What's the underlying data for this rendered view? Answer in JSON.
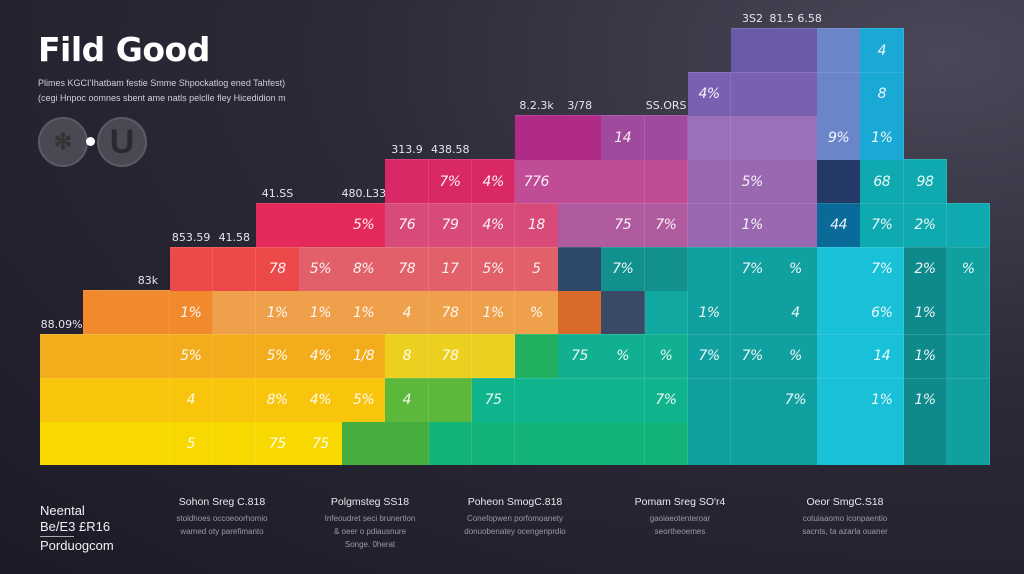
{
  "header": {
    "title": "Fild Good",
    "subtitle_lines": [
      "Plimes KGCI'Ihatbam festie Smme Shpockatlog ened Tahfest)",
      "(cegi Hnpoc oomnes sbent ame natls pelclle fley Hicedidion m"
    ],
    "icons": [
      "globe-icon",
      "u-letter-icon"
    ]
  },
  "chart_data": {
    "type": "heatmap",
    "title": "Fild Good",
    "layout": "staircase",
    "columns": [
      {
        "top_label": "88.09%",
        "cells": 3
      },
      {
        "top_label": "",
        "cells": 4
      },
      {
        "top_label": "83k",
        "cells": 4
      },
      {
        "top_label": "853.59",
        "cells": 5
      },
      {
        "top_label": "41.58",
        "cells": 5
      },
      {
        "top_label": "41.SS",
        "cells": 6
      },
      {
        "top_label": "",
        "cells": 6
      },
      {
        "top_label": "480.L33",
        "cells": 6
      },
      {
        "top_label": "313.9",
        "cells": 7
      },
      {
        "top_label": "438.58",
        "cells": 7
      },
      {
        "top_label": "",
        "cells": 7
      },
      {
        "top_label": "8.2.3k",
        "cells": 8
      },
      {
        "top_label": "3/78",
        "cells": 8
      },
      {
        "top_label": "",
        "cells": 8
      },
      {
        "top_label": "SS.ORS",
        "cells": 8
      },
      {
        "top_label": "",
        "cells": 9
      },
      {
        "top_label": "3S2",
        "cells": 10
      },
      {
        "top_label": "81.5 6.58",
        "cells": 10
      },
      {
        "top_label": "",
        "cells": 10
      },
      {
        "top_label": "",
        "cells": 10
      },
      {
        "top_label": "",
        "cells": 7
      },
      {
        "top_label": "",
        "cells": 6
      }
    ],
    "cell_labels": [
      {
        "col": 3,
        "row": 0,
        "text": "5"
      },
      {
        "col": 5,
        "row": 0,
        "text": "75"
      },
      {
        "col": 6,
        "row": 0,
        "text": "75"
      },
      {
        "col": 3,
        "row": 1,
        "text": "4"
      },
      {
        "col": 5,
        "row": 1,
        "text": "8%"
      },
      {
        "col": 6,
        "row": 1,
        "text": "4%"
      },
      {
        "col": 7,
        "row": 1,
        "text": "5%"
      },
      {
        "col": 8,
        "row": 1,
        "text": "4"
      },
      {
        "col": 10,
        "row": 1,
        "text": "75"
      },
      {
        "col": 14,
        "row": 1,
        "text": "7%"
      },
      {
        "col": 17,
        "row": 1,
        "text": "7%"
      },
      {
        "col": 19,
        "row": 1,
        "text": "1%"
      },
      {
        "col": 20,
        "row": 1,
        "text": "1%"
      },
      {
        "col": 3,
        "row": 2,
        "text": "5%"
      },
      {
        "col": 5,
        "row": 2,
        "text": "5%"
      },
      {
        "col": 6,
        "row": 2,
        "text": "4%"
      },
      {
        "col": 7,
        "row": 2,
        "text": "1/8"
      },
      {
        "col": 8,
        "row": 2,
        "text": "8"
      },
      {
        "col": 9,
        "row": 2,
        "text": "78"
      },
      {
        "col": 12,
        "row": 2,
        "text": "75"
      },
      {
        "col": 13,
        "row": 2,
        "text": "%"
      },
      {
        "col": 14,
        "row": 2,
        "text": "%"
      },
      {
        "col": 15,
        "row": 2,
        "text": "7%"
      },
      {
        "col": 16,
        "row": 2,
        "text": "7%"
      },
      {
        "col": 17,
        "row": 2,
        "text": "%"
      },
      {
        "col": 19,
        "row": 2,
        "text": "14"
      },
      {
        "col": 20,
        "row": 2,
        "text": "1%"
      },
      {
        "col": 3,
        "row": 3,
        "text": "1%"
      },
      {
        "col": 5,
        "row": 3,
        "text": "1%"
      },
      {
        "col": 6,
        "row": 3,
        "text": "1%"
      },
      {
        "col": 7,
        "row": 3,
        "text": "1%"
      },
      {
        "col": 8,
        "row": 3,
        "text": "4"
      },
      {
        "col": 9,
        "row": 3,
        "text": "78"
      },
      {
        "col": 10,
        "row": 3,
        "text": "1%"
      },
      {
        "col": 11,
        "row": 3,
        "text": "%"
      },
      {
        "col": 15,
        "row": 3,
        "text": "1%"
      },
      {
        "col": 17,
        "row": 3,
        "text": "4"
      },
      {
        "col": 19,
        "row": 3,
        "text": "6%"
      },
      {
        "col": 20,
        "row": 3,
        "text": "1%"
      },
      {
        "col": 5,
        "row": 4,
        "text": "78"
      },
      {
        "col": 6,
        "row": 4,
        "text": "5%"
      },
      {
        "col": 7,
        "row": 4,
        "text": "8%"
      },
      {
        "col": 8,
        "row": 4,
        "text": "78"
      },
      {
        "col": 9,
        "row": 4,
        "text": "17"
      },
      {
        "col": 10,
        "row": 4,
        "text": "5%"
      },
      {
        "col": 11,
        "row": 4,
        "text": "5"
      },
      {
        "col": 13,
        "row": 4,
        "text": "7%"
      },
      {
        "col": 16,
        "row": 4,
        "text": "7%"
      },
      {
        "col": 17,
        "row": 4,
        "text": "%"
      },
      {
        "col": 19,
        "row": 4,
        "text": "7%"
      },
      {
        "col": 20,
        "row": 4,
        "text": "2%"
      },
      {
        "col": 21,
        "row": 4,
        "text": "%"
      },
      {
        "col": 7,
        "row": 5,
        "text": "5%"
      },
      {
        "col": 8,
        "row": 5,
        "text": "76"
      },
      {
        "col": 9,
        "row": 5,
        "text": "79"
      },
      {
        "col": 10,
        "row": 5,
        "text": "4%"
      },
      {
        "col": 11,
        "row": 5,
        "text": "18"
      },
      {
        "col": 13,
        "row": 5,
        "text": "75"
      },
      {
        "col": 14,
        "row": 5,
        "text": "7%"
      },
      {
        "col": 16,
        "row": 5,
        "text": "1%"
      },
      {
        "col": 18,
        "row": 5,
        "text": "44"
      },
      {
        "col": 19,
        "row": 5,
        "text": "7%"
      },
      {
        "col": 20,
        "row": 5,
        "text": "2%"
      },
      {
        "col": 9,
        "row": 6,
        "text": "7%"
      },
      {
        "col": 10,
        "row": 6,
        "text": "4%"
      },
      {
        "col": 11,
        "row": 6,
        "text": "776"
      },
      {
        "col": 16,
        "row": 6,
        "text": "5%"
      },
      {
        "col": 19,
        "row": 6,
        "text": "68"
      },
      {
        "col": 20,
        "row": 6,
        "text": "98"
      },
      {
        "col": 13,
        "row": 7,
        "text": "14"
      },
      {
        "col": 18,
        "row": 7,
        "text": "9%"
      },
      {
        "col": 19,
        "row": 7,
        "text": "1%"
      },
      {
        "col": 15,
        "row": 8,
        "text": "4%"
      },
      {
        "col": 19,
        "row": 8,
        "text": "8"
      },
      {
        "col": 19,
        "row": 9,
        "text": "4"
      }
    ],
    "colors": {
      "yellow": "#f7d200",
      "orange": "#f0922e",
      "red": "#e8565a",
      "crimson": "#e23462",
      "magenta": "#b8308a",
      "purple": "#7a4aa0",
      "green": "#2fb04e",
      "teal": "#12a898",
      "cyan": "#18c4dc",
      "navy": "#243a66"
    }
  },
  "footer": {
    "legend_lines": [
      "Neental",
      "Be/E3 £R16",
      "Porduogcom"
    ],
    "columns": [
      {
        "heading": "Sohon Sreg C.818",
        "lines": [
          "stoldhoes occoeoorhomio",
          "wamed oty parefimanto"
        ]
      },
      {
        "heading": "Polgmsteg SS18",
        "lines": [
          "Infeoudret seci brunertion",
          "& oeer o pdiausnure",
          "Songe. 0herat"
        ]
      },
      {
        "heading": "Poheon SmogC.818",
        "lines": [
          "Conefopwen porfomoanety",
          "donuobenatey ocengenprdio"
        ]
      },
      {
        "heading": "Pomam Sreg SO'r4",
        "lines": [
          "gaoiaeotenteroar",
          "seortheoemes"
        ]
      },
      {
        "heading": "Oeor SmgC.S18",
        "lines": [
          "cotuiaaomo iconpaentio",
          "sacnts, ta azarla ouaner"
        ]
      }
    ]
  }
}
